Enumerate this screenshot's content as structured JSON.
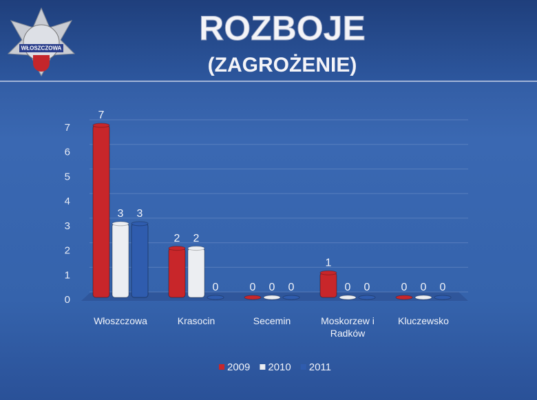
{
  "logo": "WŁOSZCZOWA",
  "chart_data": {
    "type": "bar",
    "title": "ROZBOJE",
    "subtitle": "(ZAGROŻENIE)",
    "categories": [
      "Włoszczowa",
      "Krasocin",
      "Secemin",
      "Moskorzew i Radków",
      "Kluczewsko"
    ],
    "series": [
      {
        "name": "2009",
        "color": "#c8262a",
        "values": [
          7,
          2,
          0,
          1,
          0
        ]
      },
      {
        "name": "2010",
        "color": "#eceef2",
        "values": [
          3,
          2,
          0,
          0,
          0
        ]
      },
      {
        "name": "2011",
        "color": "#2f5cae",
        "values": [
          3,
          0,
          0,
          0,
          0
        ]
      }
    ],
    "ylim": [
      0,
      7
    ],
    "yticks": [
      0,
      1,
      2,
      3,
      4,
      5,
      6,
      7
    ],
    "grid": true,
    "legend": "bottom"
  }
}
